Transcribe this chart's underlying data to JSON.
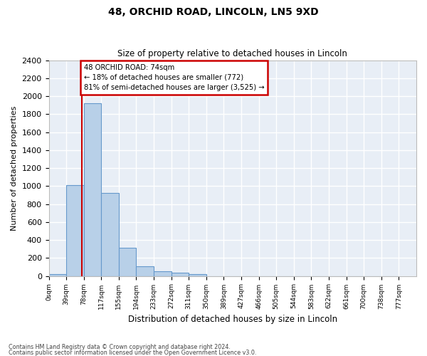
{
  "title": "48, ORCHID ROAD, LINCOLN, LN5 9XD",
  "subtitle": "Size of property relative to detached houses in Lincoln",
  "xlabel": "Distribution of detached houses by size in Lincoln",
  "ylabel": "Number of detached properties",
  "bar_color": "#b8d0e8",
  "bar_edge_color": "#6699cc",
  "background_color": "#e8eef6",
  "grid_color": "#ffffff",
  "annotation_box_color": "#cc0000",
  "property_line_color": "#cc0000",
  "bin_labels": [
    "0sqm",
    "39sqm",
    "78sqm",
    "117sqm",
    "155sqm",
    "194sqm",
    "233sqm",
    "272sqm",
    "311sqm",
    "350sqm",
    "389sqm",
    "427sqm",
    "466sqm",
    "505sqm",
    "544sqm",
    "583sqm",
    "622sqm",
    "661sqm",
    "700sqm",
    "738sqm",
    "777sqm"
  ],
  "bar_values": [
    20,
    1010,
    1920,
    920,
    315,
    110,
    55,
    35,
    20,
    0,
    0,
    0,
    0,
    0,
    0,
    0,
    0,
    0,
    0,
    0
  ],
  "property_size_sqm": 74,
  "ylim": [
    0,
    2400
  ],
  "yticks": [
    0,
    200,
    400,
    600,
    800,
    1000,
    1200,
    1400,
    1600,
    1800,
    2000,
    2200,
    2400
  ],
  "annotation_line1": "48 ORCHID ROAD: 74sqm",
  "annotation_line2": "← 18% of detached houses are smaller (772)",
  "annotation_line3": "81% of semi-detached houses are larger (3,525) →",
  "footnote1": "Contains HM Land Registry data © Crown copyright and database right 2024.",
  "footnote2": "Contains public sector information licensed under the Open Government Licence v3.0.",
  "bin_width": 39,
  "n_bins": 20
}
